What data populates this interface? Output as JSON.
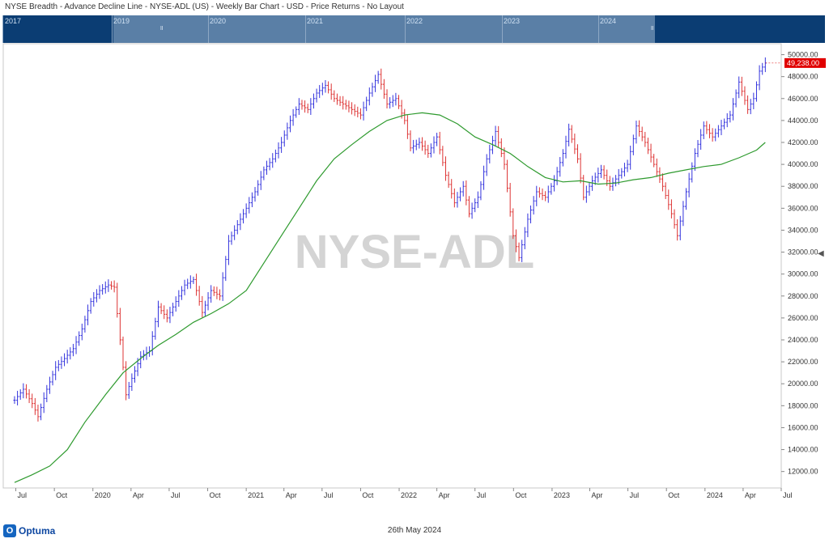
{
  "window": {
    "title": "NYSE Breadth - Advance Decline Line - NYSE-ADL (US) - Weekly Bar Chart - USD - Price Returns - No Layout"
  },
  "navigator": {
    "years": [
      "2017",
      "2019",
      "2020",
      "2021",
      "2022",
      "2023",
      "2024"
    ]
  },
  "watermark": "NYSE-ADL",
  "last_price_label": "49,238.00",
  "footer": {
    "date": "26th May 2024",
    "brand": "Optuma"
  },
  "colors": {
    "up_bar": "#3333dd",
    "down_bar": "#dd3333",
    "moving_average": "#2e9a2e",
    "price_tag": "#e00000",
    "navigator": "#0b3d73"
  },
  "chart_data": {
    "type": "bar",
    "title": "NYSE Breadth - Advance Decline Line - NYSE-ADL (US) - Weekly Bar Chart - USD - Price Returns - No Layout",
    "x_tick_labels": [
      "Jul",
      "Oct",
      "2020",
      "Apr",
      "Jul",
      "Oct",
      "2021",
      "Apr",
      "Jul",
      "Oct",
      "2022",
      "Apr",
      "Jul",
      "Oct",
      "2023",
      "Apr",
      "Jul",
      "Oct",
      "2024",
      "Apr",
      "Jul"
    ],
    "y_tick_labels": [
      "12000.00",
      "14000.00",
      "16000.00",
      "18000.00",
      "20000.00",
      "22000.00",
      "24000.00",
      "26000.00",
      "28000.00",
      "30000.00",
      "32000.00",
      "34000.00",
      "36000.00",
      "38000.00",
      "40000.00",
      "42000.00",
      "44000.00",
      "46000.00",
      "48000.00",
      "50000.00"
    ],
    "ylim": [
      10500,
      51000
    ],
    "x_range": [
      "2019-06",
      "2024-07"
    ],
    "last_value": 49238,
    "price_path": [
      [
        "2019-06-28",
        18500
      ],
      [
        "2019-07-19",
        19500
      ],
      [
        "2019-08-09",
        18200
      ],
      [
        "2019-08-23",
        17000
      ],
      [
        "2019-09-13",
        19500
      ],
      [
        "2019-10-04",
        21500
      ],
      [
        "2019-10-25",
        22300
      ],
      [
        "2019-11-15",
        23200
      ],
      [
        "2019-12-06",
        25000
      ],
      [
        "2019-12-27",
        27500
      ],
      [
        "2020-01-17",
        28500
      ],
      [
        "2020-02-07",
        29000
      ],
      [
        "2020-02-21",
        28800
      ],
      [
        "2020-03-06",
        24000
      ],
      [
        "2020-03-20",
        19000
      ],
      [
        "2020-04-03",
        20500
      ],
      [
        "2020-04-24",
        22500
      ],
      [
        "2020-05-15",
        23000
      ],
      [
        "2020-06-05",
        27000
      ],
      [
        "2020-06-26",
        26000
      ],
      [
        "2020-07-17",
        27500
      ],
      [
        "2020-08-07",
        29000
      ],
      [
        "2020-08-28",
        29500
      ],
      [
        "2020-09-18",
        26500
      ],
      [
        "2020-10-09",
        28500
      ],
      [
        "2020-10-30",
        28000
      ],
      [
        "2020-11-20",
        33000
      ],
      [
        "2020-12-11",
        34500
      ],
      [
        "2021-01-01",
        36000
      ],
      [
        "2021-01-22",
        37500
      ],
      [
        "2021-02-12",
        39500
      ],
      [
        "2021-03-05",
        40500
      ],
      [
        "2021-03-26",
        42000
      ],
      [
        "2021-04-16",
        44000
      ],
      [
        "2021-05-07",
        45500
      ],
      [
        "2021-05-28",
        45000
      ],
      [
        "2021-06-18",
        46500
      ],
      [
        "2021-07-09",
        47200
      ],
      [
        "2021-07-30",
        46000
      ],
      [
        "2021-08-20",
        45500
      ],
      [
        "2021-09-10",
        45000
      ],
      [
        "2021-10-01",
        44500
      ],
      [
        "2021-10-22",
        46500
      ],
      [
        "2021-11-12",
        48200
      ],
      [
        "2021-12-03",
        45500
      ],
      [
        "2021-12-24",
        46000
      ],
      [
        "2022-01-14",
        44000
      ],
      [
        "2022-01-28",
        41500
      ],
      [
        "2022-02-18",
        42000
      ],
      [
        "2022-03-11",
        41000
      ],
      [
        "2022-04-01",
        42500
      ],
      [
        "2022-04-22",
        39000
      ],
      [
        "2022-05-13",
        36500
      ],
      [
        "2022-06-03",
        38000
      ],
      [
        "2022-06-17",
        35500
      ],
      [
        "2022-07-08",
        37000
      ],
      [
        "2022-07-29",
        40500
      ],
      [
        "2022-08-19",
        43000
      ],
      [
        "2022-09-09",
        40000
      ],
      [
        "2022-09-30",
        33500
      ],
      [
        "2022-10-14",
        31500
      ],
      [
        "2022-11-04",
        35000
      ],
      [
        "2022-11-25",
        37500
      ],
      [
        "2022-12-16",
        37000
      ],
      [
        "2023-01-06",
        38500
      ],
      [
        "2023-01-27",
        41000
      ],
      [
        "2023-02-10",
        43200
      ],
      [
        "2023-03-03",
        40500
      ],
      [
        "2023-03-17",
        37000
      ],
      [
        "2023-04-07",
        38500
      ],
      [
        "2023-04-28",
        39500
      ],
      [
        "2023-05-19",
        38000
      ],
      [
        "2023-06-09",
        39000
      ],
      [
        "2023-06-30",
        40000
      ],
      [
        "2023-07-21",
        43500
      ],
      [
        "2023-08-11",
        42000
      ],
      [
        "2023-09-01",
        40000
      ],
      [
        "2023-09-22",
        38000
      ],
      [
        "2023-10-13",
        35500
      ],
      [
        "2023-10-27",
        33500
      ],
      [
        "2023-11-17",
        37500
      ],
      [
        "2023-12-08",
        41000
      ],
      [
        "2023-12-29",
        43500
      ],
      [
        "2024-01-19",
        42500
      ],
      [
        "2024-02-09",
        43500
      ],
      [
        "2024-03-01",
        44500
      ],
      [
        "2024-03-22",
        47500
      ],
      [
        "2024-04-12",
        45000
      ],
      [
        "2024-04-26",
        46000
      ],
      [
        "2024-05-10",
        48500
      ],
      [
        "2024-05-24",
        49238
      ]
    ],
    "moving_average": [
      [
        "2019-06-28",
        11000
      ],
      [
        "2019-08-09",
        11700
      ],
      [
        "2019-09-20",
        12500
      ],
      [
        "2019-11-01",
        14000
      ],
      [
        "2019-12-13",
        16500
      ],
      [
        "2020-01-31",
        19000
      ],
      [
        "2020-03-13",
        21000
      ],
      [
        "2020-04-24",
        22300
      ],
      [
        "2020-06-05",
        23500
      ],
      [
        "2020-07-17",
        24500
      ],
      [
        "2020-08-28",
        25600
      ],
      [
        "2020-10-09",
        26400
      ],
      [
        "2020-11-20",
        27300
      ],
      [
        "2021-01-01",
        28500
      ],
      [
        "2021-02-12",
        31000
      ],
      [
        "2021-03-26",
        33500
      ],
      [
        "2021-05-07",
        36000
      ],
      [
        "2021-06-18",
        38500
      ],
      [
        "2021-07-30",
        40500
      ],
      [
        "2021-09-10",
        41800
      ],
      [
        "2021-10-22",
        43000
      ],
      [
        "2021-12-03",
        44000
      ],
      [
        "2022-01-14",
        44500
      ],
      [
        "2022-02-25",
        44700
      ],
      [
        "2022-04-08",
        44500
      ],
      [
        "2022-05-20",
        43700
      ],
      [
        "2022-07-01",
        42500
      ],
      [
        "2022-08-12",
        41800
      ],
      [
        "2022-09-23",
        41000
      ],
      [
        "2022-11-04",
        39800
      ],
      [
        "2022-12-16",
        38800
      ],
      [
        "2023-01-27",
        38400
      ],
      [
        "2023-03-10",
        38500
      ],
      [
        "2023-04-21",
        38200
      ],
      [
        "2023-06-02",
        38300
      ],
      [
        "2023-07-14",
        38600
      ],
      [
        "2023-08-25",
        38800
      ],
      [
        "2023-10-06",
        39200
      ],
      [
        "2023-11-17",
        39500
      ],
      [
        "2023-12-29",
        39800
      ],
      [
        "2024-02-09",
        40000
      ],
      [
        "2024-03-22",
        40600
      ],
      [
        "2024-05-03",
        41300
      ],
      [
        "2024-05-24",
        42000
      ]
    ]
  }
}
